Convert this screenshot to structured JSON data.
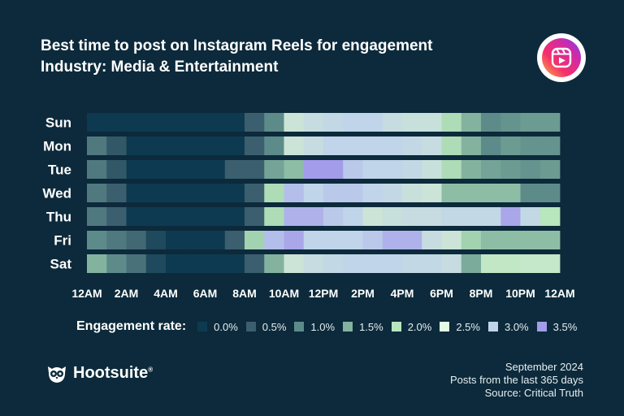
{
  "header": {
    "title": "Best time to post on Instagram Reels for engagement",
    "subtitle": "Industry: Media & Entertainment"
  },
  "badge": {
    "icon": "instagram-reels-icon"
  },
  "legend": {
    "title": "Engagement rate:",
    "items": [
      {
        "label": "0.0%",
        "color": "#0d3a50"
      },
      {
        "label": "0.5%",
        "color": "#3b5f6e"
      },
      {
        "label": "1.0%",
        "color": "#5d8b8a"
      },
      {
        "label": "1.5%",
        "color": "#83b39f"
      },
      {
        "label": "2.0%",
        "color": "#b8e6bd"
      },
      {
        "label": "2.5%",
        "color": "#e4fbe4"
      },
      {
        "label": "3.0%",
        "color": "#c0d4ea"
      },
      {
        "label": "3.5%",
        "color": "#a39cea"
      }
    ]
  },
  "brand": {
    "name": "Hootsuite",
    "reg": "®",
    "icon": "owl-logo-icon"
  },
  "footer": {
    "date": "September 2024",
    "period": "Posts from the last 365 days",
    "source": "Source: Critical Truth"
  },
  "chart_data": {
    "type": "heatmap",
    "title": "Best time to post on Instagram Reels for engagement",
    "subtitle": "Industry: Media & Entertainment",
    "xlabel": "",
    "ylabel": "",
    "x_ticks": [
      "12AM",
      "2AM",
      "4AM",
      "6AM",
      "8AM",
      "10AM",
      "12PM",
      "2PM",
      "4PM",
      "6PM",
      "8PM",
      "10PM",
      "12AM"
    ],
    "rows": [
      "Sun",
      "Mon",
      "Tue",
      "Wed",
      "Thu",
      "Fri",
      "Sat"
    ],
    "hours": [
      0,
      1,
      2,
      3,
      4,
      5,
      6,
      7,
      8,
      9,
      10,
      11,
      12,
      13,
      14,
      15,
      16,
      17,
      18,
      19,
      20,
      21,
      22,
      23
    ],
    "value_unit": "%",
    "color_range": [
      0,
      3.5
    ],
    "values": [
      [
        0.0,
        0.0,
        0.0,
        0.0,
        0.0,
        0.0,
        0.0,
        0.0,
        0.5,
        1.0,
        2.6,
        2.8,
        2.9,
        3.0,
        3.0,
        2.8,
        2.7,
        2.7,
        1.9,
        1.5,
        1.0,
        1.1,
        1.2,
        1.2
      ],
      [
        0.8,
        0.4,
        0.0,
        0.0,
        0.0,
        0.0,
        0.0,
        0.0,
        0.5,
        1.0,
        2.6,
        2.8,
        3.0,
        3.0,
        3.0,
        3.0,
        2.9,
        2.8,
        1.9,
        1.5,
        1.0,
        1.2,
        1.1,
        1.1
      ],
      [
        0.8,
        0.4,
        0.0,
        0.0,
        0.0,
        0.0,
        0.0,
        0.5,
        0.5,
        1.3,
        1.6,
        3.5,
        3.5,
        3.1,
        3.0,
        3.0,
        2.9,
        2.7,
        1.9,
        1.5,
        1.3,
        1.2,
        1.1,
        1.2
      ],
      [
        0.8,
        0.5,
        0.0,
        0.0,
        0.0,
        0.0,
        0.0,
        0.0,
        0.5,
        1.9,
        3.2,
        3.0,
        3.1,
        3.1,
        3.0,
        2.9,
        2.7,
        2.6,
        1.6,
        1.6,
        1.6,
        1.6,
        1.0,
        1.0
      ],
      [
        0.8,
        0.5,
        0.0,
        0.0,
        0.0,
        0.0,
        0.0,
        0.0,
        0.5,
        1.9,
        3.3,
        3.3,
        3.1,
        3.0,
        2.6,
        2.7,
        2.8,
        2.8,
        2.9,
        2.9,
        2.9,
        3.4,
        2.9,
        2.0
      ],
      [
        1.0,
        0.8,
        0.6,
        0.2,
        0.0,
        0.0,
        0.0,
        0.5,
        1.8,
        3.2,
        3.4,
        3.0,
        3.0,
        3.0,
        3.1,
        3.3,
        3.3,
        2.8,
        2.6,
        1.8,
        1.6,
        1.6,
        1.6,
        1.6
      ],
      [
        1.5,
        1.0,
        0.7,
        0.2,
        0.0,
        0.0,
        0.0,
        0.0,
        0.5,
        1.5,
        2.6,
        2.8,
        2.9,
        3.0,
        3.0,
        3.0,
        2.9,
        2.9,
        2.8,
        1.4,
        2.2,
        2.2,
        2.3,
        2.3
      ]
    ]
  }
}
